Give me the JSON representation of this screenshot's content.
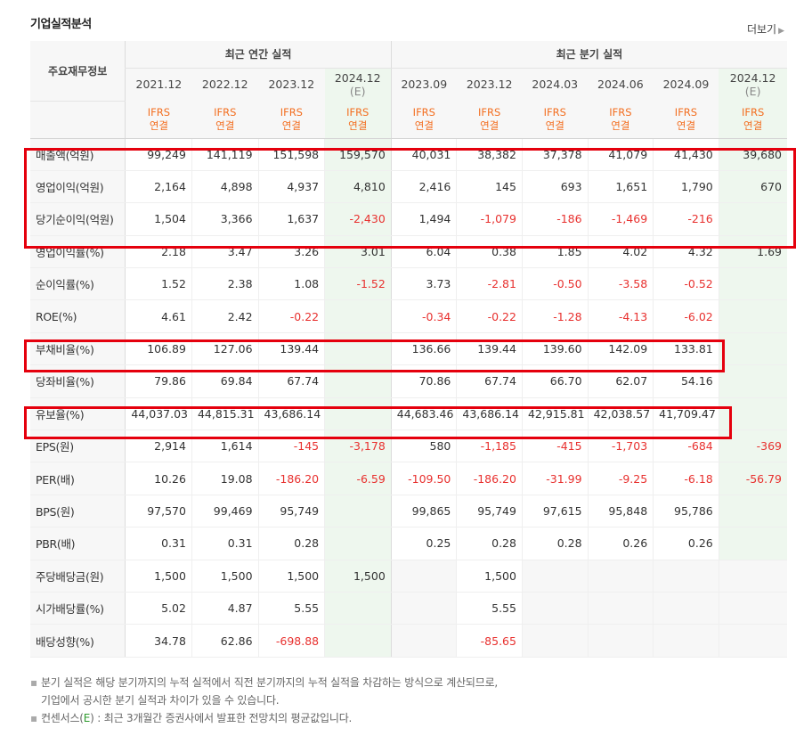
{
  "title": "기업실적분석",
  "more_label": "더보기",
  "header": {
    "row_label": "주요재무정보",
    "annual_group": "최근 연간 실적",
    "quarter_group": "최근 분기 실적",
    "annual_periods": [
      "2021.12",
      "2022.12",
      "2023.12",
      "2024.12"
    ],
    "annual_est_flag": "(E)",
    "quarter_periods": [
      "2023.09",
      "2023.12",
      "2024.03",
      "2024.06",
      "2024.09",
      "2024.12"
    ],
    "quarter_est_flag": "(E)",
    "ifrs_top": "IFRS",
    "ifrs_bottom": "연결"
  },
  "rows": [
    {
      "label": "매출액(억원)",
      "values": [
        "99,249",
        "141,119",
        "151,598",
        "159,570",
        "40,031",
        "38,382",
        "37,378",
        "41,079",
        "41,430",
        "39,680"
      ]
    },
    {
      "label": "영업이익(억원)",
      "values": [
        "2,164",
        "4,898",
        "4,937",
        "4,810",
        "2,416",
        "145",
        "693",
        "1,651",
        "1,790",
        "670"
      ]
    },
    {
      "label": "당기순이익(억원)",
      "values": [
        "1,504",
        "3,366",
        "1,637",
        "-2,430",
        "1,494",
        "-1,079",
        "-186",
        "-1,469",
        "-216",
        ""
      ]
    },
    {
      "label": "영업이익률(%)",
      "values": [
        "2.18",
        "3.47",
        "3.26",
        "3.01",
        "6.04",
        "0.38",
        "1.85",
        "4.02",
        "4.32",
        "1.69"
      ]
    },
    {
      "label": "순이익률(%)",
      "values": [
        "1.52",
        "2.38",
        "1.08",
        "-1.52",
        "3.73",
        "-2.81",
        "-0.50",
        "-3.58",
        "-0.52",
        ""
      ]
    },
    {
      "label": "ROE(%)",
      "values": [
        "4.61",
        "2.42",
        "-0.22",
        "",
        "-0.34",
        "-0.22",
        "-1.28",
        "-4.13",
        "-6.02",
        ""
      ]
    },
    {
      "label": "부채비율(%)",
      "values": [
        "106.89",
        "127.06",
        "139.44",
        "",
        "136.66",
        "139.44",
        "139.60",
        "142.09",
        "133.81",
        ""
      ]
    },
    {
      "label": "당좌비율(%)",
      "values": [
        "79.86",
        "69.84",
        "67.74",
        "",
        "70.86",
        "67.74",
        "66.70",
        "62.07",
        "54.16",
        ""
      ]
    },
    {
      "label": "유보율(%)",
      "values": [
        "44,037.03",
        "44,815.31",
        "43,686.14",
        "",
        "44,683.46",
        "43,686.14",
        "42,915.81",
        "42,038.57",
        "41,709.47",
        ""
      ]
    },
    {
      "label": "EPS(원)",
      "values": [
        "2,914",
        "1,614",
        "-145",
        "-3,178",
        "580",
        "-1,185",
        "-415",
        "-1,703",
        "-684",
        "-369"
      ]
    },
    {
      "label": "PER(배)",
      "values": [
        "10.26",
        "19.08",
        "-186.20",
        "-6.59",
        "-109.50",
        "-186.20",
        "-31.99",
        "-9.25",
        "-6.18",
        "-56.79"
      ]
    },
    {
      "label": "BPS(원)",
      "values": [
        "97,570",
        "99,469",
        "95,749",
        "",
        "99,865",
        "95,749",
        "97,615",
        "95,848",
        "95,786",
        ""
      ]
    },
    {
      "label": "PBR(배)",
      "values": [
        "0.31",
        "0.31",
        "0.28",
        "",
        "0.25",
        "0.28",
        "0.28",
        "0.26",
        "0.26",
        ""
      ]
    },
    {
      "label": "주당배당금(원)",
      "values": [
        "1,500",
        "1,500",
        "1,500",
        "1,500",
        "",
        "1,500",
        "",
        "",
        "",
        ""
      ]
    },
    {
      "label": "시가배당률(%)",
      "values": [
        "5.02",
        "4.87",
        "5.55",
        "",
        "",
        "5.55",
        "",
        "",
        "",
        ""
      ]
    },
    {
      "label": "배당성향(%)",
      "values": [
        "34.78",
        "62.86",
        "-698.88",
        "",
        "",
        "-85.65",
        "",
        "",
        "",
        ""
      ]
    }
  ],
  "notes": {
    "line1": "분기 실적은 해당 분기까지의 누적 실적에서 직전 분기까지의 누적 실적을 차감하는 방식으로 계산되므로,",
    "line2": "기업에서 공시한 분기 실적과 차이가 있을 수 있습니다.",
    "line3_prefix": "컨센서스(",
    "line3_e": "E",
    "line3_suffix": ") : 최근 3개월간 증권사에서 발표한 전망치의 평균값입니다."
  },
  "colors": {
    "negative": "#e8312f",
    "ifrs": "#f36f21",
    "estimate_bg": "#eef7ee",
    "highlight_box": "#e5000d"
  }
}
